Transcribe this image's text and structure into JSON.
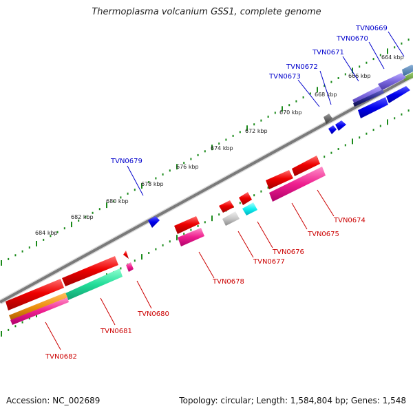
{
  "title": "Thermoplasma volcanium GSS1, complete genome",
  "footer": {
    "accession": "Accession: NC_002689",
    "summary": "Topology: circular; Length: 1,584,804 bp; Genes: 1,548"
  },
  "colors": {
    "backbone": "#7a7a7a",
    "tick": "#1a8a1a",
    "plus_label": "#0000cc",
    "minus_label": "#cc0000"
  },
  "scale_labels": [
    "664 kbp",
    "666 kbp",
    "668 kbp",
    "670 kbp",
    "672 kbp",
    "674 kbp",
    "676 kbp",
    "678 kbp",
    "680 kbp",
    "682 kbp",
    "684 kbp"
  ],
  "plus_gene_labels": [
    "TVN0669",
    "TVN0670",
    "TVN0671",
    "TVN0672",
    "TVN0673",
    "TVN0679"
  ],
  "minus_gene_labels": [
    "TVN0674",
    "TVN0675",
    "TVN0676",
    "TVN0677",
    "TVN0678",
    "TVN0680",
    "TVN0681",
    "TVN0682"
  ]
}
